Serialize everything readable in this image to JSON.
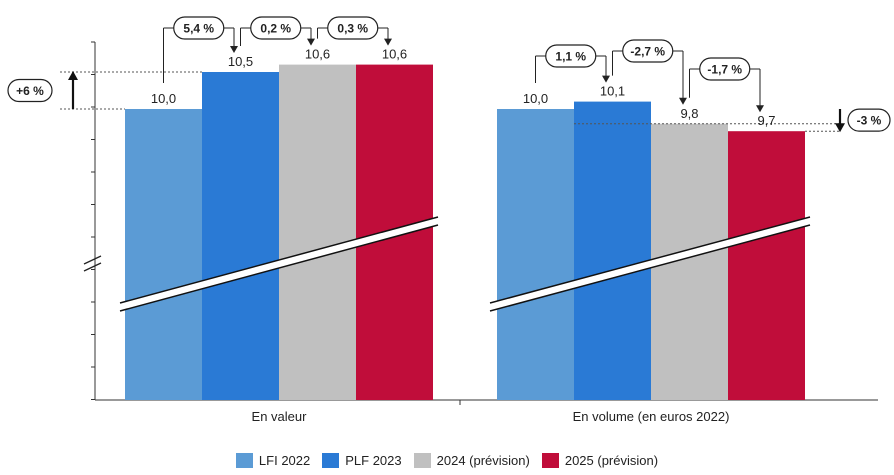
{
  "chart_data": {
    "type": "bar",
    "title": "",
    "xlabel": "",
    "ylabel": "",
    "axis_break": true,
    "categories": [
      "En valeur",
      "En volume (en euros 2022)"
    ],
    "series": [
      {
        "name": "LFI 2022",
        "color": "#5b9bd5",
        "values": [
          10.0,
          10.0
        ],
        "labels": [
          "10,0",
          "10,0"
        ]
      },
      {
        "name": "PLF 2023",
        "color": "#2a7ad5",
        "values": [
          10.5,
          10.1
        ],
        "labels": [
          "10,5",
          "10,1"
        ]
      },
      {
        "name": "2024 (prévision)",
        "color": "#c0c0c0",
        "values": [
          10.6,
          9.8
        ],
        "labels": [
          "10,6",
          "9,8"
        ]
      },
      {
        "name": "2025 (prévision)",
        "color": "#c00d3a",
        "values": [
          10.6,
          9.7
        ],
        "labels": [
          "10,6",
          "9,7"
        ]
      }
    ],
    "annotations": [
      {
        "group": 0,
        "from": 0,
        "to": 1,
        "text": "5,4 %"
      },
      {
        "group": 0,
        "from": 1,
        "to": 2,
        "text": "0,2 %"
      },
      {
        "group": 0,
        "from": 2,
        "to": 3,
        "text": "0,3 %"
      },
      {
        "group": 1,
        "from": 0,
        "to": 1,
        "text": "1,1 %"
      },
      {
        "group": 1,
        "from": 1,
        "to": 2,
        "text": "-2,7 %"
      },
      {
        "group": 1,
        "from": 2,
        "to": 3,
        "text": "-1,7 %"
      }
    ],
    "totals": [
      {
        "group": 0,
        "text": "+6 %",
        "side": "left",
        "direction": "up"
      },
      {
        "group": 1,
        "text": "-3 %",
        "side": "right",
        "direction": "down"
      }
    ]
  }
}
